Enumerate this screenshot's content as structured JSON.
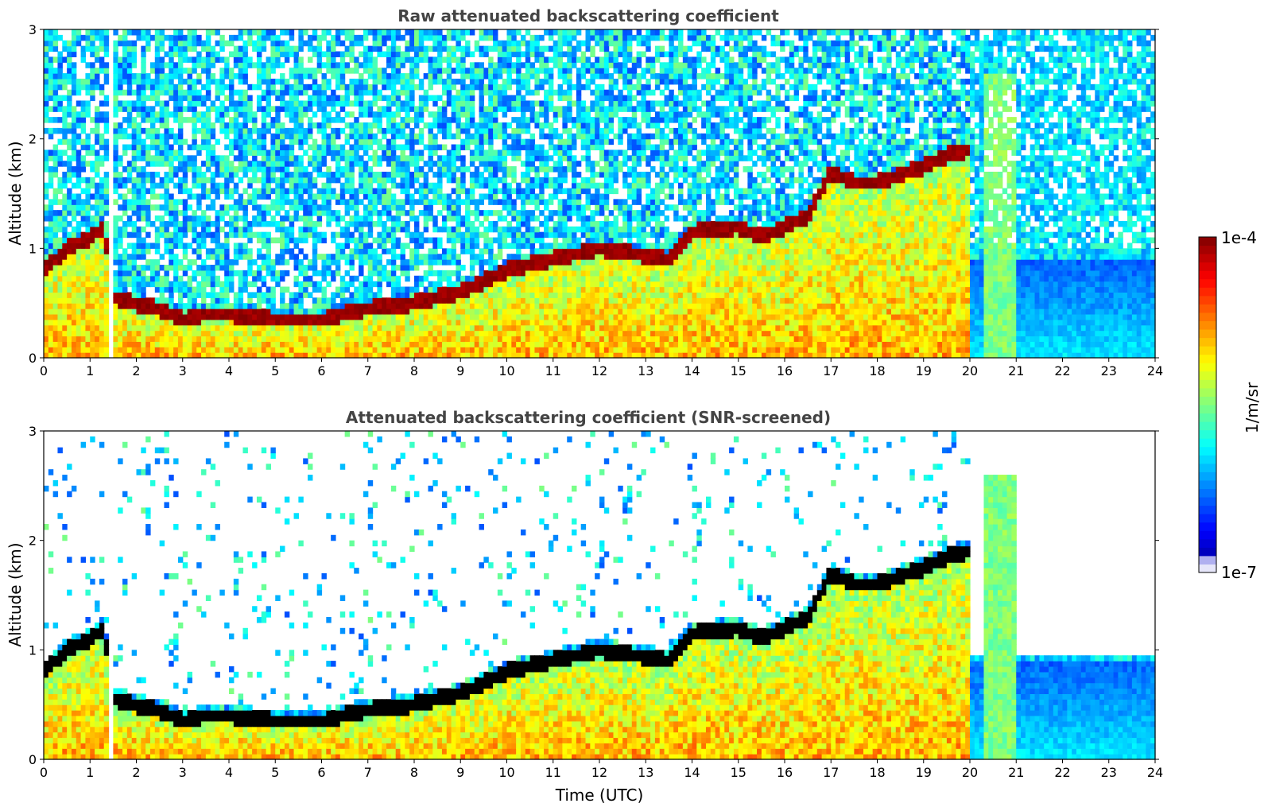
{
  "chart_data": [
    {
      "type": "heatmap",
      "title": "Raw attenuated backscattering coefficient",
      "xlabel": "",
      "ylabel": "Altitude (km)",
      "xlim": [
        0,
        24
      ],
      "ylim": [
        0,
        3
      ],
      "x_ticks": [
        "0",
        "1",
        "2",
        "3",
        "4",
        "5",
        "6",
        "7",
        "8",
        "9",
        "10",
        "11",
        "12",
        "13",
        "14",
        "15",
        "16",
        "17",
        "18",
        "19",
        "20",
        "21",
        "22",
        "23",
        "24"
      ],
      "y_ticks": [
        "0",
        "1",
        "2",
        "3"
      ],
      "cloud_base_profile": {
        "x": [
          0,
          0.5,
          1,
          1.3,
          1.5,
          2,
          2.5,
          3,
          3.5,
          4,
          5,
          6,
          7,
          8,
          9,
          10,
          11,
          12,
          12.8,
          13.5,
          14,
          15,
          15.5,
          16,
          16.5,
          17,
          17.5,
          18,
          19,
          19.5,
          20
        ],
        "altitude_km": [
          0.8,
          1.0,
          1.1,
          1.2,
          0.55,
          0.5,
          0.45,
          0.35,
          0.4,
          0.4,
          0.35,
          0.35,
          0.45,
          0.5,
          0.6,
          0.8,
          0.9,
          1.0,
          0.95,
          0.9,
          1.15,
          1.2,
          1.1,
          1.2,
          1.3,
          1.7,
          1.6,
          1.6,
          1.75,
          1.85,
          1.9
        ]
      }
    },
    {
      "type": "heatmap",
      "title": "Attenuated backscattering coefficient (SNR-screened)",
      "xlabel": "Time (UTC)",
      "ylabel": "Altitude (km)",
      "xlim": [
        0,
        24
      ],
      "ylim": [
        0,
        3
      ],
      "x_ticks": [
        "0",
        "1",
        "2",
        "3",
        "4",
        "5",
        "6",
        "7",
        "8",
        "9",
        "10",
        "11",
        "12",
        "13",
        "14",
        "15",
        "16",
        "17",
        "18",
        "19",
        "20",
        "21",
        "22",
        "23",
        "24"
      ],
      "y_ticks": [
        "0",
        "1",
        "2",
        "3"
      ]
    }
  ],
  "colorbar": {
    "max_label": "1e-4",
    "min_label": "1e-7",
    "unit": "1/m/sr",
    "colormap": "jet",
    "scale": "log"
  }
}
